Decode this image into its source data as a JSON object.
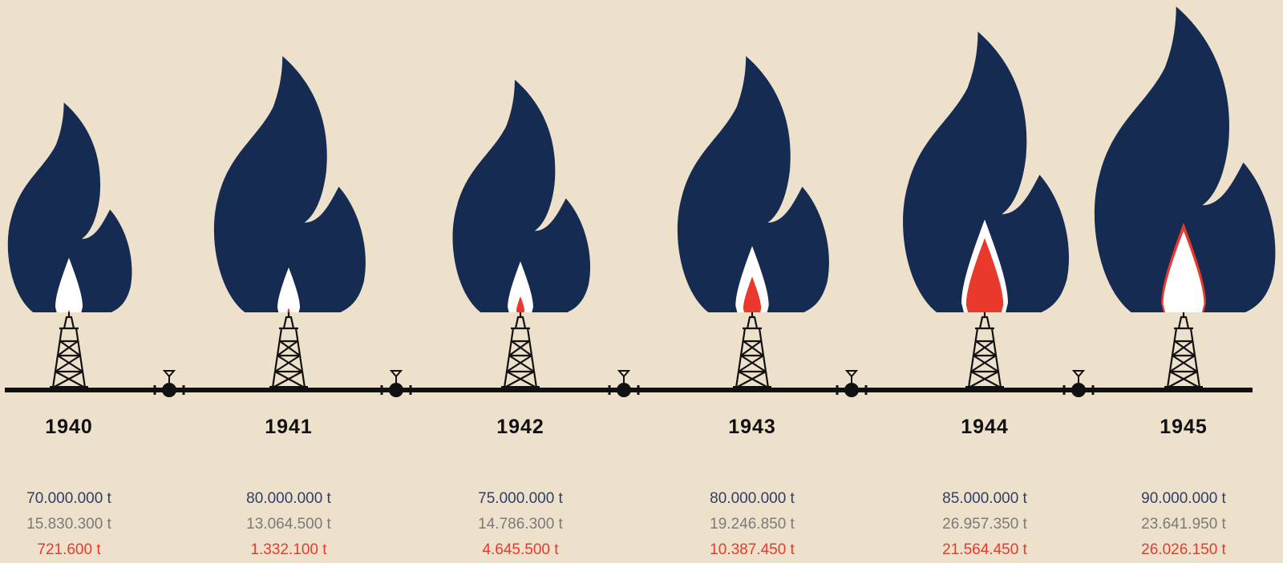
{
  "items": [
    {
      "year": "1940",
      "values": [
        "70.000.000 t",
        "15.830.300 t",
        "721.600 t"
      ]
    },
    {
      "year": "1941",
      "values": [
        "80.000.000 t",
        "13.064.500 t",
        "1.332.100 t"
      ]
    },
    {
      "year": "1942",
      "values": [
        "75.000.000 t",
        "14.786.300 t",
        "4.645.500 t"
      ]
    },
    {
      "year": "1943",
      "values": [
        "80.000.000 t",
        "19.246.850 t",
        "10.387.450 t"
      ]
    },
    {
      "year": "1944",
      "values": [
        "85.000.000 t",
        "26.957.350 t",
        "21.564.450 t"
      ]
    },
    {
      "year": "1945",
      "values": [
        "90.000.000 t",
        "23.641.950 t",
        "26.026.150 t"
      ]
    }
  ]
}
